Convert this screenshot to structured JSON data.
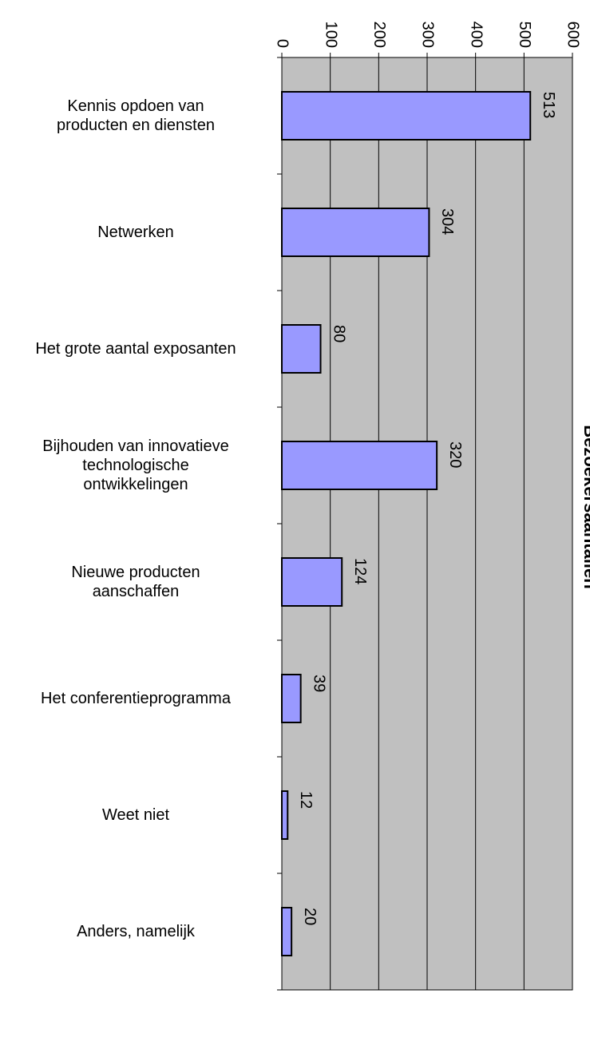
{
  "chart_data": {
    "type": "bar",
    "orientation": "horizontal",
    "title": "Bezoekersaantallen",
    "categories": [
      "Kennis opdoen van\nproducten en diensten",
      "Netwerken",
      "Het grote aantal exposanten",
      "Bijhouden van innovatieve\ntechnologische\nontwikkelingen",
      "Nieuwe producten\naanschaffen",
      "Het conferentieprogramma",
      "Weet niet",
      "Anders, namelijk"
    ],
    "values": [
      513,
      304,
      80,
      320,
      124,
      39,
      12,
      20
    ],
    "color": "#9999ff",
    "plot_background": "#c0c0c0",
    "xlim": [
      0,
      600
    ],
    "xticks": [
      0,
      100,
      200,
      300,
      400,
      500,
      600
    ],
    "grid": true
  }
}
